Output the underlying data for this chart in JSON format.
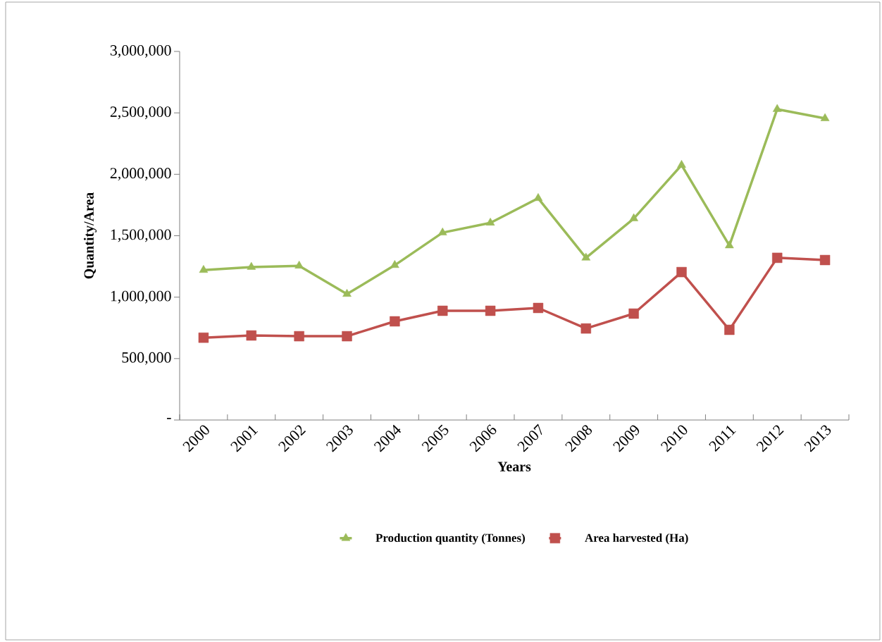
{
  "chart_data": {
    "type": "line",
    "xlabel": "Years",
    "ylabel": "Quantity/Area",
    "categories": [
      "2000",
      "2001",
      "2002",
      "2003",
      "2004",
      "2005",
      "2006",
      "2007",
      "2008",
      "2009",
      "2010",
      "2011",
      "2012",
      "2013"
    ],
    "series": [
      {
        "name": "Production quantity (Tonnes)",
        "color": "#9bbb59",
        "marker": "triangle",
        "values": [
          1220000,
          1245000,
          1255000,
          1025000,
          1260000,
          1525000,
          1605000,
          1805000,
          1320000,
          1640000,
          2075000,
          1420000,
          2530000,
          2455000
        ]
      },
      {
        "name": "Area harvested (Ha)",
        "color": "#c0504d",
        "marker": "square",
        "values": [
          670000,
          688000,
          682000,
          682000,
          803000,
          889000,
          889000,
          912000,
          745000,
          866000,
          1204000,
          734000,
          1320000,
          1302000
        ]
      }
    ],
    "ylim": [
      0,
      3000000
    ],
    "yticks": [
      {
        "value": 0,
        "label": "-"
      },
      {
        "value": 500000,
        "label": "500,000"
      },
      {
        "value": 1000000,
        "label": "1,000,000"
      },
      {
        "value": 1500000,
        "label": "1,500,000"
      },
      {
        "value": 2000000,
        "label": "2,000,000"
      },
      {
        "value": 2500000,
        "label": "2,500,000"
      },
      {
        "value": 3000000,
        "label": "3,000,000"
      }
    ],
    "grid": false,
    "legend": "bottom",
    "line_style": "solid"
  }
}
